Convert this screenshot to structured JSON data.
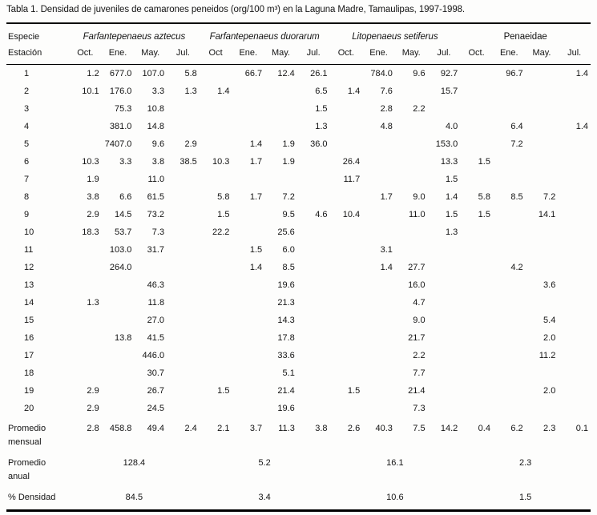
{
  "title": "Tabla 1. Densidad de juveniles de camarones peneidos (org/100 m³) en la Laguna Madre, Tamaulipas, 1997-1998.",
  "table": {
    "corner": {
      "line1": "Especie",
      "line2": "Estación"
    },
    "species_groups": [
      {
        "name": "Farfantepenaeus aztecus",
        "italic": true
      },
      {
        "name": "Farfantepenaeus duorarum",
        "italic": true
      },
      {
        "name": "Litopenaeus setiferus",
        "italic": true
      },
      {
        "name": "Penaeidae",
        "italic": false
      }
    ],
    "month_headers": [
      "Oct.",
      "Ene.",
      "May.",
      "Jul.",
      "Oct",
      "Ene.",
      "May.",
      "Jul.",
      "Oct.",
      "Ene.",
      "May.",
      "Jul.",
      "Oct.",
      "Ene.",
      "May.",
      "Jul."
    ],
    "rows": [
      {
        "station": "1",
        "values": [
          "1.2",
          "677.0",
          "107.0",
          "5.8",
          "",
          "66.7",
          "12.4",
          "26.1",
          "",
          "784.0",
          "9.6",
          "92.7",
          "",
          "96.7",
          "",
          "1.4"
        ]
      },
      {
        "station": "2",
        "values": [
          "10.1",
          "176.0",
          "3.3",
          "1.3",
          "1.4",
          "",
          "",
          "6.5",
          "1.4",
          "7.6",
          "",
          "15.7",
          "",
          "",
          "",
          ""
        ]
      },
      {
        "station": "3",
        "values": [
          "",
          "75.3",
          "10.8",
          "",
          "",
          "",
          "",
          "1.5",
          "",
          "2.8",
          "2.2",
          "",
          "",
          "",
          "",
          ""
        ]
      },
      {
        "station": "4",
        "values": [
          "",
          "381.0",
          "14.8",
          "",
          "",
          "",
          "",
          "1.3",
          "",
          "4.8",
          "",
          "4.0",
          "",
          "6.4",
          "",
          "1.4"
        ]
      },
      {
        "station": "5",
        "values": [
          "",
          "7407.0",
          "9.6",
          "2.9",
          "",
          "1.4",
          "1.9",
          "36.0",
          "",
          "",
          "",
          "153.0",
          "",
          "7.2",
          "",
          ""
        ]
      },
      {
        "station": "6",
        "values": [
          "10.3",
          "3.3",
          "3.8",
          "38.5",
          "10.3",
          "1.7",
          "1.9",
          "",
          "26.4",
          "",
          "",
          "13.3",
          "1.5",
          "",
          "",
          ""
        ]
      },
      {
        "station": "7",
        "values": [
          "1.9",
          "",
          "11.0",
          "",
          "",
          "",
          "",
          "",
          "11.7",
          "",
          "",
          "1.5",
          "",
          "",
          "",
          ""
        ]
      },
      {
        "station": "8",
        "values": [
          "3.8",
          "6.6",
          "61.5",
          "",
          "5.8",
          "1.7",
          "7.2",
          "",
          "",
          "1.7",
          "9.0",
          "1.4",
          "5.8",
          "8.5",
          "7.2",
          ""
        ]
      },
      {
        "station": "9",
        "values": [
          "2.9",
          "14.5",
          "73.2",
          "",
          "1.5",
          "",
          "9.5",
          "4.6",
          "10.4",
          "",
          "11.0",
          "1.5",
          "1.5",
          "",
          "14.1",
          ""
        ]
      },
      {
        "station": "10",
        "values": [
          "18.3",
          "53.7",
          "7.3",
          "",
          "22.2",
          "",
          "25.6",
          "",
          "",
          "",
          "",
          "1.3",
          "",
          "",
          "",
          ""
        ]
      },
      {
        "station": "11",
        "values": [
          "",
          "103.0",
          "31.7",
          "",
          "",
          "1.5",
          "6.0",
          "",
          "",
          "3.1",
          "",
          "",
          "",
          "",
          "",
          ""
        ]
      },
      {
        "station": "12",
        "values": [
          "",
          "264.0",
          "",
          "",
          "",
          "1.4",
          "8.5",
          "",
          "",
          "1.4",
          "27.7",
          "",
          "",
          "4.2",
          "",
          ""
        ]
      },
      {
        "station": "13",
        "values": [
          "",
          "",
          "46.3",
          "",
          "",
          "",
          "19.6",
          "",
          "",
          "",
          "16.0",
          "",
          "",
          "",
          "3.6",
          ""
        ]
      },
      {
        "station": "14",
        "values": [
          "1.3",
          "",
          "11.8",
          "",
          "",
          "",
          "21.3",
          "",
          "",
          "",
          "4.7",
          "",
          "",
          "",
          "",
          ""
        ]
      },
      {
        "station": "15",
        "values": [
          "",
          "",
          "27.0",
          "",
          "",
          "",
          "14.3",
          "",
          "",
          "",
          "9.0",
          "",
          "",
          "",
          "5.4",
          ""
        ]
      },
      {
        "station": "16",
        "values": [
          "",
          "13.8",
          "41.5",
          "",
          "",
          "",
          "17.8",
          "",
          "",
          "",
          "21.7",
          "",
          "",
          "",
          "2.0",
          ""
        ]
      },
      {
        "station": "17",
        "values": [
          "",
          "",
          "446.0",
          "",
          "",
          "",
          "33.6",
          "",
          "",
          "",
          "2.2",
          "",
          "",
          "",
          "11.2",
          ""
        ]
      },
      {
        "station": "18",
        "values": [
          "",
          "",
          "30.7",
          "",
          "",
          "",
          "5.1",
          "",
          "",
          "",
          "7.7",
          "",
          "",
          "",
          "",
          ""
        ]
      },
      {
        "station": "19",
        "values": [
          "2.9",
          "",
          "26.7",
          "",
          "1.5",
          "",
          "21.4",
          "",
          "1.5",
          "",
          "21.4",
          "",
          "",
          "",
          "2.0",
          ""
        ]
      },
      {
        "station": "20",
        "values": [
          "2.9",
          "",
          "24.5",
          "",
          "",
          "",
          "19.6",
          "",
          "",
          "",
          "7.3",
          "",
          "",
          "",
          "",
          ""
        ]
      }
    ],
    "summary": {
      "monthly": {
        "label1": "Promedio",
        "label2": "mensual",
        "values": [
          "2.8",
          "458.8",
          "49.4",
          "2.4",
          "2.1",
          "3.7",
          "11.3",
          "3.8",
          "2.6",
          "40.3",
          "7.5",
          "14.2",
          "0.4",
          "6.2",
          "2.3",
          "0.1"
        ]
      },
      "annual": {
        "label1": "Promedio",
        "label2": "anual",
        "values": [
          "128.4",
          "5.2",
          "16.1",
          "2.3"
        ]
      },
      "density": {
        "label": "% Densidad",
        "values": [
          "84.5",
          "3.4",
          "10.6",
          "1.5"
        ]
      }
    }
  }
}
